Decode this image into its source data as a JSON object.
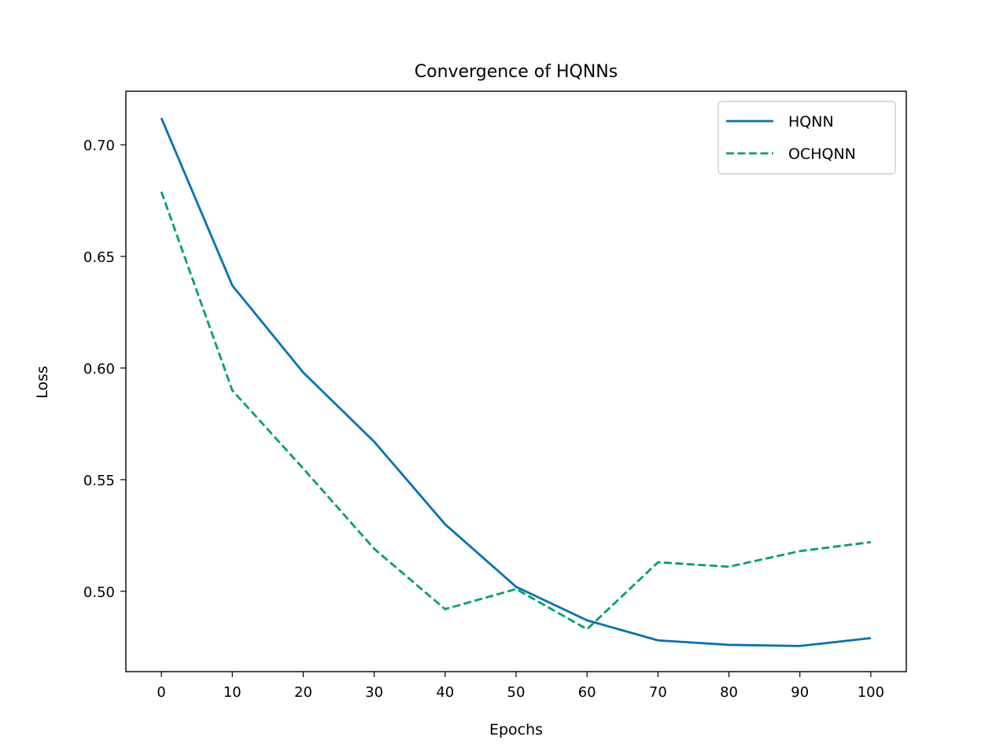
{
  "chart_data": {
    "type": "line",
    "title": "Convergence of HQNNs",
    "xlabel": "Epochs",
    "ylabel": "Loss",
    "xlim": [
      -5,
      105
    ],
    "ylim": [
      0.464,
      0.724
    ],
    "xticks": [
      0,
      10,
      20,
      30,
      40,
      50,
      60,
      70,
      80,
      90,
      100
    ],
    "xtick_labels": [
      "0",
      "10",
      "20",
      "30",
      "40",
      "50",
      "60",
      "70",
      "80",
      "90",
      "100"
    ],
    "yticks": [
      0.5,
      0.55,
      0.6,
      0.65,
      0.7
    ],
    "ytick_labels": [
      "0.50",
      "0.55",
      "0.60",
      "0.65",
      "0.70"
    ],
    "grid": false,
    "legend_position": "top-right",
    "x": [
      0,
      10,
      20,
      30,
      40,
      50,
      60,
      70,
      80,
      90,
      100
    ],
    "series": [
      {
        "name": "HQNN",
        "style": "solid",
        "color": "#0072b2",
        "values": [
          0.712,
          0.637,
          0.598,
          0.567,
          0.53,
          0.502,
          0.487,
          0.478,
          0.476,
          0.4755,
          0.479
        ]
      },
      {
        "name": "OCHQNN",
        "style": "dashed",
        "color": "#009e73",
        "values": [
          0.679,
          0.59,
          0.555,
          0.519,
          0.492,
          0.501,
          0.483,
          0.513,
          0.511,
          0.518,
          0.522
        ]
      }
    ]
  }
}
